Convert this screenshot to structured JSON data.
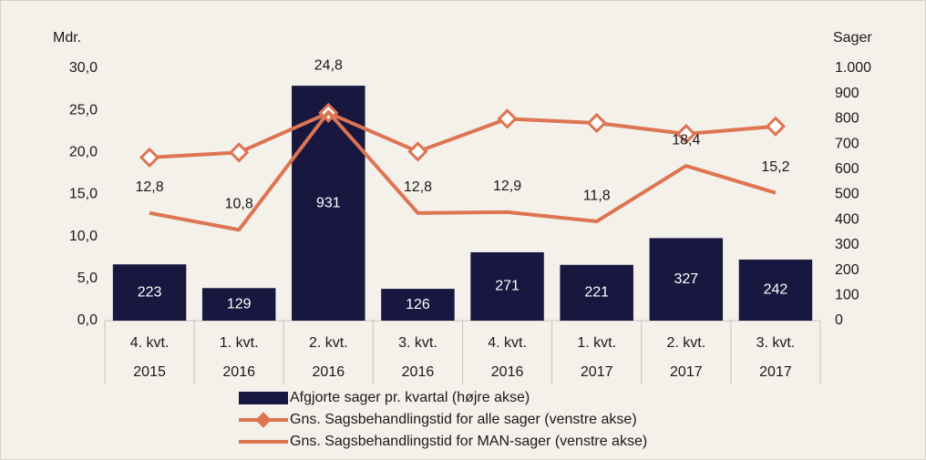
{
  "chart_data": {
    "type": "bar_line",
    "y_axis_title": "Mdr.",
    "y2_axis_title": "Sager",
    "categories": [
      [
        "4. kvt.",
        "2015"
      ],
      [
        "1. kvt.",
        "2016"
      ],
      [
        "2. kvt.",
        "2016"
      ],
      [
        "3. kvt.",
        "2016"
      ],
      [
        "4. kvt.",
        "2016"
      ],
      [
        "1. kvt.",
        "2017"
      ],
      [
        "2. kvt.",
        "2017"
      ],
      [
        "3. kvt.",
        "2017"
      ]
    ],
    "series": [
      {
        "name": "Afgjorte sager pr. kvartal (højre akse)",
        "type": "bar",
        "axis": "y2",
        "color": "#17173f",
        "values": [
          223,
          129,
          931,
          126,
          271,
          221,
          327,
          242
        ]
      },
      {
        "name": "Gns. Sagsbehandlingstid for alle sager (venstre akse)",
        "type": "line",
        "marker": "diamond",
        "color": "#dd7452",
        "values": [
          19.4,
          20.0,
          24.7,
          20.1,
          24.0,
          23.5,
          22.2,
          23.1
        ]
      },
      {
        "name": "Gns. Sagsbehandlingstid for MAN-sager (venstre akse)",
        "type": "line",
        "color": "#dd7452",
        "values": [
          12.8,
          10.8,
          24.8,
          12.8,
          12.9,
          11.8,
          18.4,
          15.2
        ],
        "value_labels": [
          "12,8",
          "10,8",
          "24,8",
          "12,8",
          "12,9",
          "11,8",
          "18,4",
          "15,2"
        ]
      }
    ],
    "ylim": [
      0,
      30
    ],
    "yticks": [
      {
        "value": 0,
        "label": "0,0"
      },
      {
        "value": 5,
        "label": "5,0"
      },
      {
        "value": 10,
        "label": "10,0"
      },
      {
        "value": 15,
        "label": "15,0"
      },
      {
        "value": 20,
        "label": "20,0"
      },
      {
        "value": 25,
        "label": "25,0"
      },
      {
        "value": 30,
        "label": "30,0"
      }
    ],
    "y2lim": [
      0,
      1000
    ],
    "y2ticks": [
      0,
      100,
      200,
      300,
      400,
      500,
      600,
      700,
      800,
      900,
      {
        "value": 1000,
        "label": "1.000"
      }
    ],
    "legend": "bottom"
  }
}
